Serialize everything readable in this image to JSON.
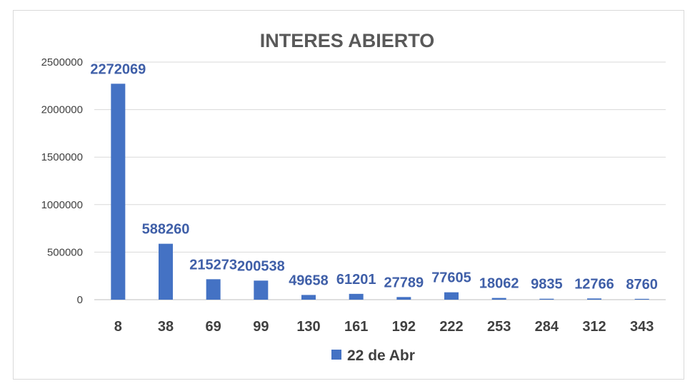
{
  "chart_data": {
    "type": "bar",
    "title": "INTERES ABIERTO",
    "categories": [
      "8",
      "38",
      "69",
      "99",
      "130",
      "161",
      "192",
      "222",
      "253",
      "284",
      "312",
      "343"
    ],
    "series": [
      {
        "name": "22 de Abr",
        "values": [
          2272069,
          588260,
          215273,
          200538,
          49658,
          61201,
          27789,
          77605,
          18062,
          9835,
          12766,
          8760
        ],
        "color": "#4472c4"
      }
    ],
    "data_labels": [
      "2272069",
      "588260",
      "215273",
      "200538",
      "49658",
      "61201",
      "27789",
      "77605",
      "18062",
      "9835",
      "12766",
      "8760"
    ],
    "y_ticks": [
      "0",
      "500000",
      "1000000",
      "1500000",
      "2000000",
      "2500000"
    ],
    "ylim": [
      0,
      2500000
    ],
    "grid": true,
    "legend": "bottom"
  }
}
